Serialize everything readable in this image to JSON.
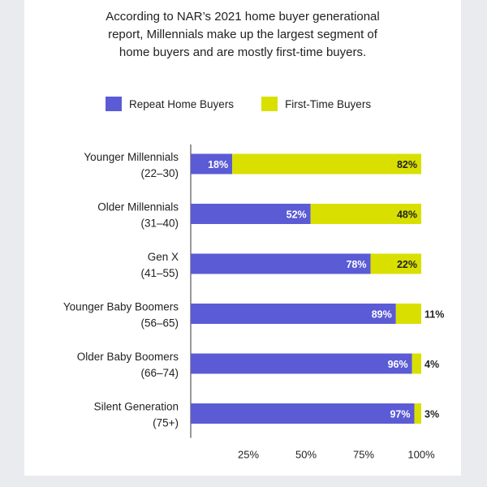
{
  "title_lines": [
    "According to NAR’s 2021 home buyer generational",
    "report, Millennials make up the largest segment of",
    "home buyers and are mostly first-time buyers."
  ],
  "colors": {
    "repeat": "#5b5bd6",
    "first_time": "#d9e000",
    "background": "#e9ebee",
    "text": "#222222"
  },
  "chart_data": {
    "type": "bar",
    "orientation": "horizontal",
    "stacked": true,
    "categories": [
      [
        "Younger Millennials",
        "(22–30)"
      ],
      [
        "Older Millennials",
        "(31–40)"
      ],
      [
        "Gen X",
        "(41–55)"
      ],
      [
        "Younger Baby Boomers",
        "(56–65)"
      ],
      [
        "Older Baby Boomers",
        "(66–74)"
      ],
      [
        "Silent Generation",
        "(75+)"
      ]
    ],
    "series": [
      {
        "name": "Repeat Home Buyers",
        "values": [
          18,
          52,
          78,
          89,
          96,
          97
        ],
        "labels": [
          "18%",
          "52%",
          "78%",
          "89%",
          "96%",
          "97%"
        ]
      },
      {
        "name": "First-Time Buyers",
        "values": [
          82,
          48,
          22,
          11,
          4,
          3
        ],
        "labels": [
          "82%",
          "48%",
          "22%",
          "11%",
          "4%",
          "3%"
        ]
      }
    ],
    "xlim": [
      0,
      100
    ],
    "x_ticks": [
      25,
      50,
      75,
      100
    ],
    "x_tick_labels": [
      "25%",
      "50%",
      "75%",
      "100%"
    ],
    "legend_position": "top",
    "grid": false
  }
}
